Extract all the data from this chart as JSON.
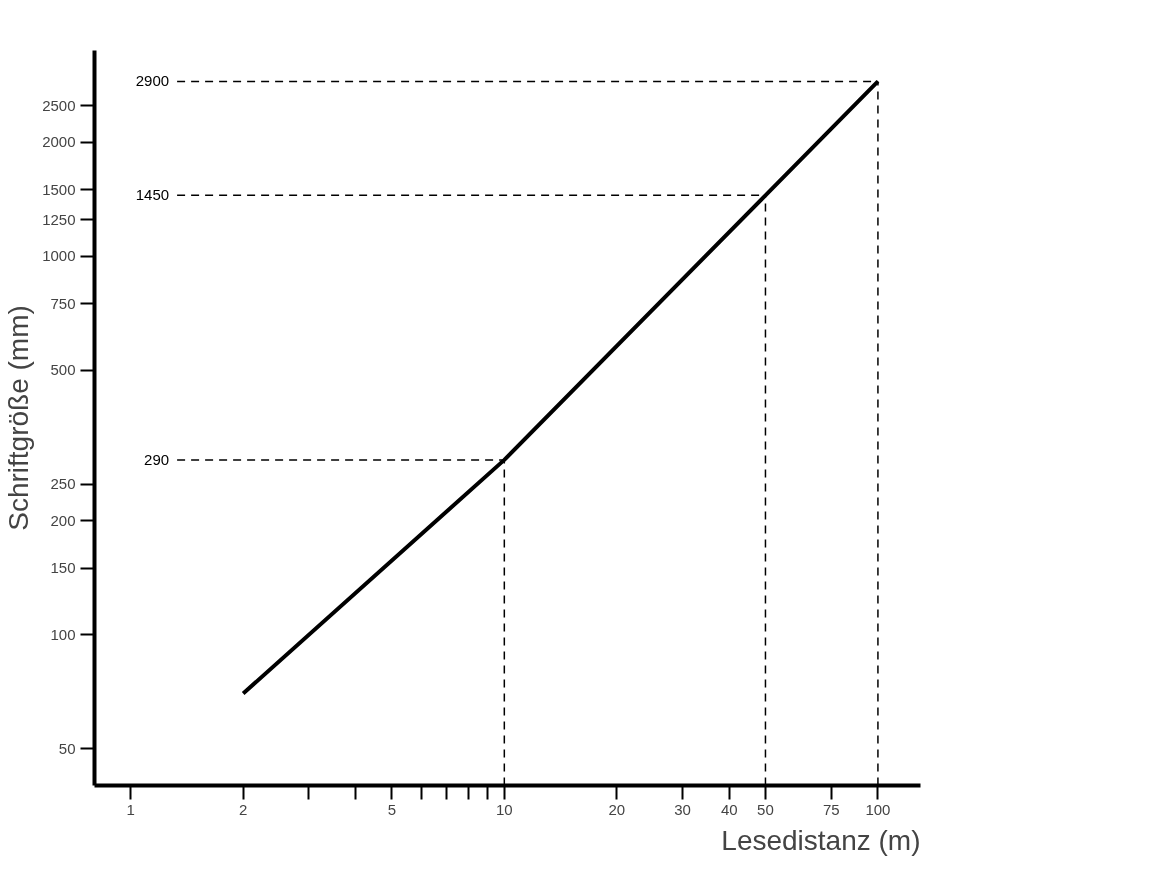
{
  "chart_data": {
    "type": "line",
    "xlabel": "Lesedistanz (m)",
    "ylabel": "Schriftgröße (mm)",
    "x": [
      2,
      10,
      50,
      100
    ],
    "series": [
      {
        "color": "#000000",
        "values": [
          70,
          290,
          1450,
          2900
        ]
      }
    ],
    "xlim": [
      0.8,
      130
    ],
    "ylim": [
      40,
      3500
    ],
    "log": "xy",
    "xticks": [
      1,
      2,
      {
        "value": 3,
        "label": null
      },
      {
        "value": 4,
        "label": null
      },
      5,
      {
        "value": 6,
        "label": null
      },
      {
        "value": 7,
        "label": null
      },
      {
        "value": 8,
        "label": null
      },
      {
        "value": 9,
        "label": null
      },
      10,
      20,
      30,
      40,
      50,
      75,
      100
    ],
    "yticks": [
      50,
      100,
      150,
      200,
      250,
      500,
      750,
      1000,
      1250,
      1500,
      2000,
      2500
    ],
    "ref_lines": [
      {
        "axis": "y",
        "value": 290,
        "label": "290",
        "color": "#000000",
        "line_style": "dashed"
      },
      {
        "axis": "y",
        "value": 1450,
        "label": "1450",
        "color": "#000000",
        "line_style": "dashed"
      },
      {
        "axis": "y",
        "value": 2900,
        "label": "2900",
        "color": "#000000",
        "line_style": "dashed"
      },
      {
        "axis": "x",
        "value": 10,
        "color": "#000000",
        "line_style": "dashed"
      },
      {
        "axis": "x",
        "value": 50,
        "color": "#000000",
        "line_style": "dashed"
      },
      {
        "axis": "x",
        "value": 100,
        "color": "#000000",
        "line_style": "dashed"
      }
    ],
    "grid": false,
    "marker": "none",
    "line_style": "solid"
  }
}
